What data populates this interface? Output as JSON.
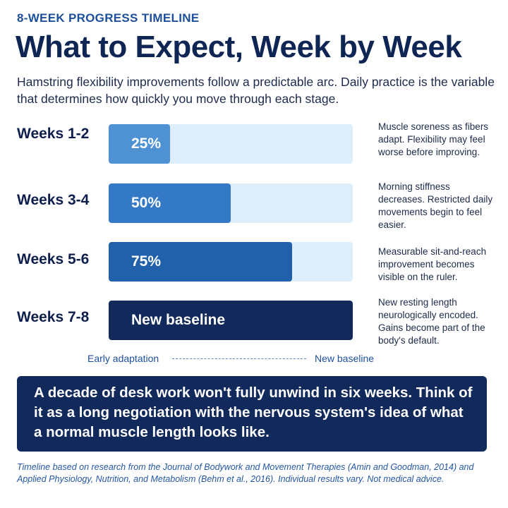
{
  "eyebrow": "8-WEEK PROGRESS TIMELINE",
  "title": "What to Expect, Week by Week",
  "subtitle": "Hamstring flexibility improvements follow a predictable arc. Daily practice is the variable that determines how quickly you move through each stage.",
  "chart_data": {
    "type": "bar",
    "orientation": "horizontal",
    "categories": [
      "Weeks 1-2",
      "Weeks 3-4",
      "Weeks 5-6",
      "Weeks 7-8"
    ],
    "values": [
      25,
      50,
      75,
      100
    ],
    "bar_labels": [
      "25%",
      "50%",
      "75%",
      "New baseline"
    ],
    "descriptions": [
      "Muscle soreness as fibers adapt. Flexibility may feel worse before improving.",
      "Morning stiffness decreases. Restricted daily movements begin to feel easier.",
      "Measurable sit-and-reach improvement becomes visible on the ruler.",
      "New resting length neurologically encoded. Gains become part of the body's default."
    ],
    "colors": [
      "#4f92d3",
      "#3479c6",
      "#2160ab",
      "#12295c"
    ],
    "track_color": "#dfeefb",
    "xlim": [
      0,
      100
    ],
    "scale_start_label": "Early adaptation",
    "scale_end_label": "New baseline",
    "grid": false,
    "legend": "none"
  },
  "callout": "A decade of desk work won't fully unwind in six weeks. Think of it as a long negotiation with the nervous system's idea of what a normal muscle length looks like.",
  "footnote": "Timeline based on research from the Journal of Bodywork and Movement Therapies (Amin and Goodman, 2014) and Applied Physiology, Nutrition, and Metabolism (Behm et al., 2016). Individual results vary. Not medical advice."
}
